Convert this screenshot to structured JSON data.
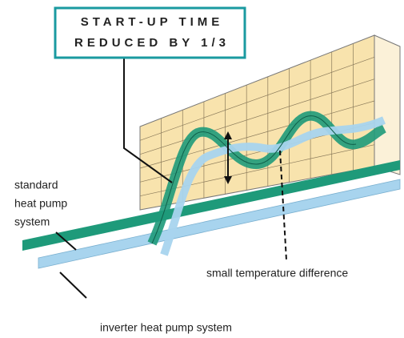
{
  "callout": {
    "lines": [
      "START-UP TIME",
      "REDUCED BY 1/3"
    ]
  },
  "labels": {
    "standard": [
      "standard",
      "heat pump",
      "system"
    ],
    "difference": "small temperature difference",
    "inverter": "inverter heat pump system"
  }
}
